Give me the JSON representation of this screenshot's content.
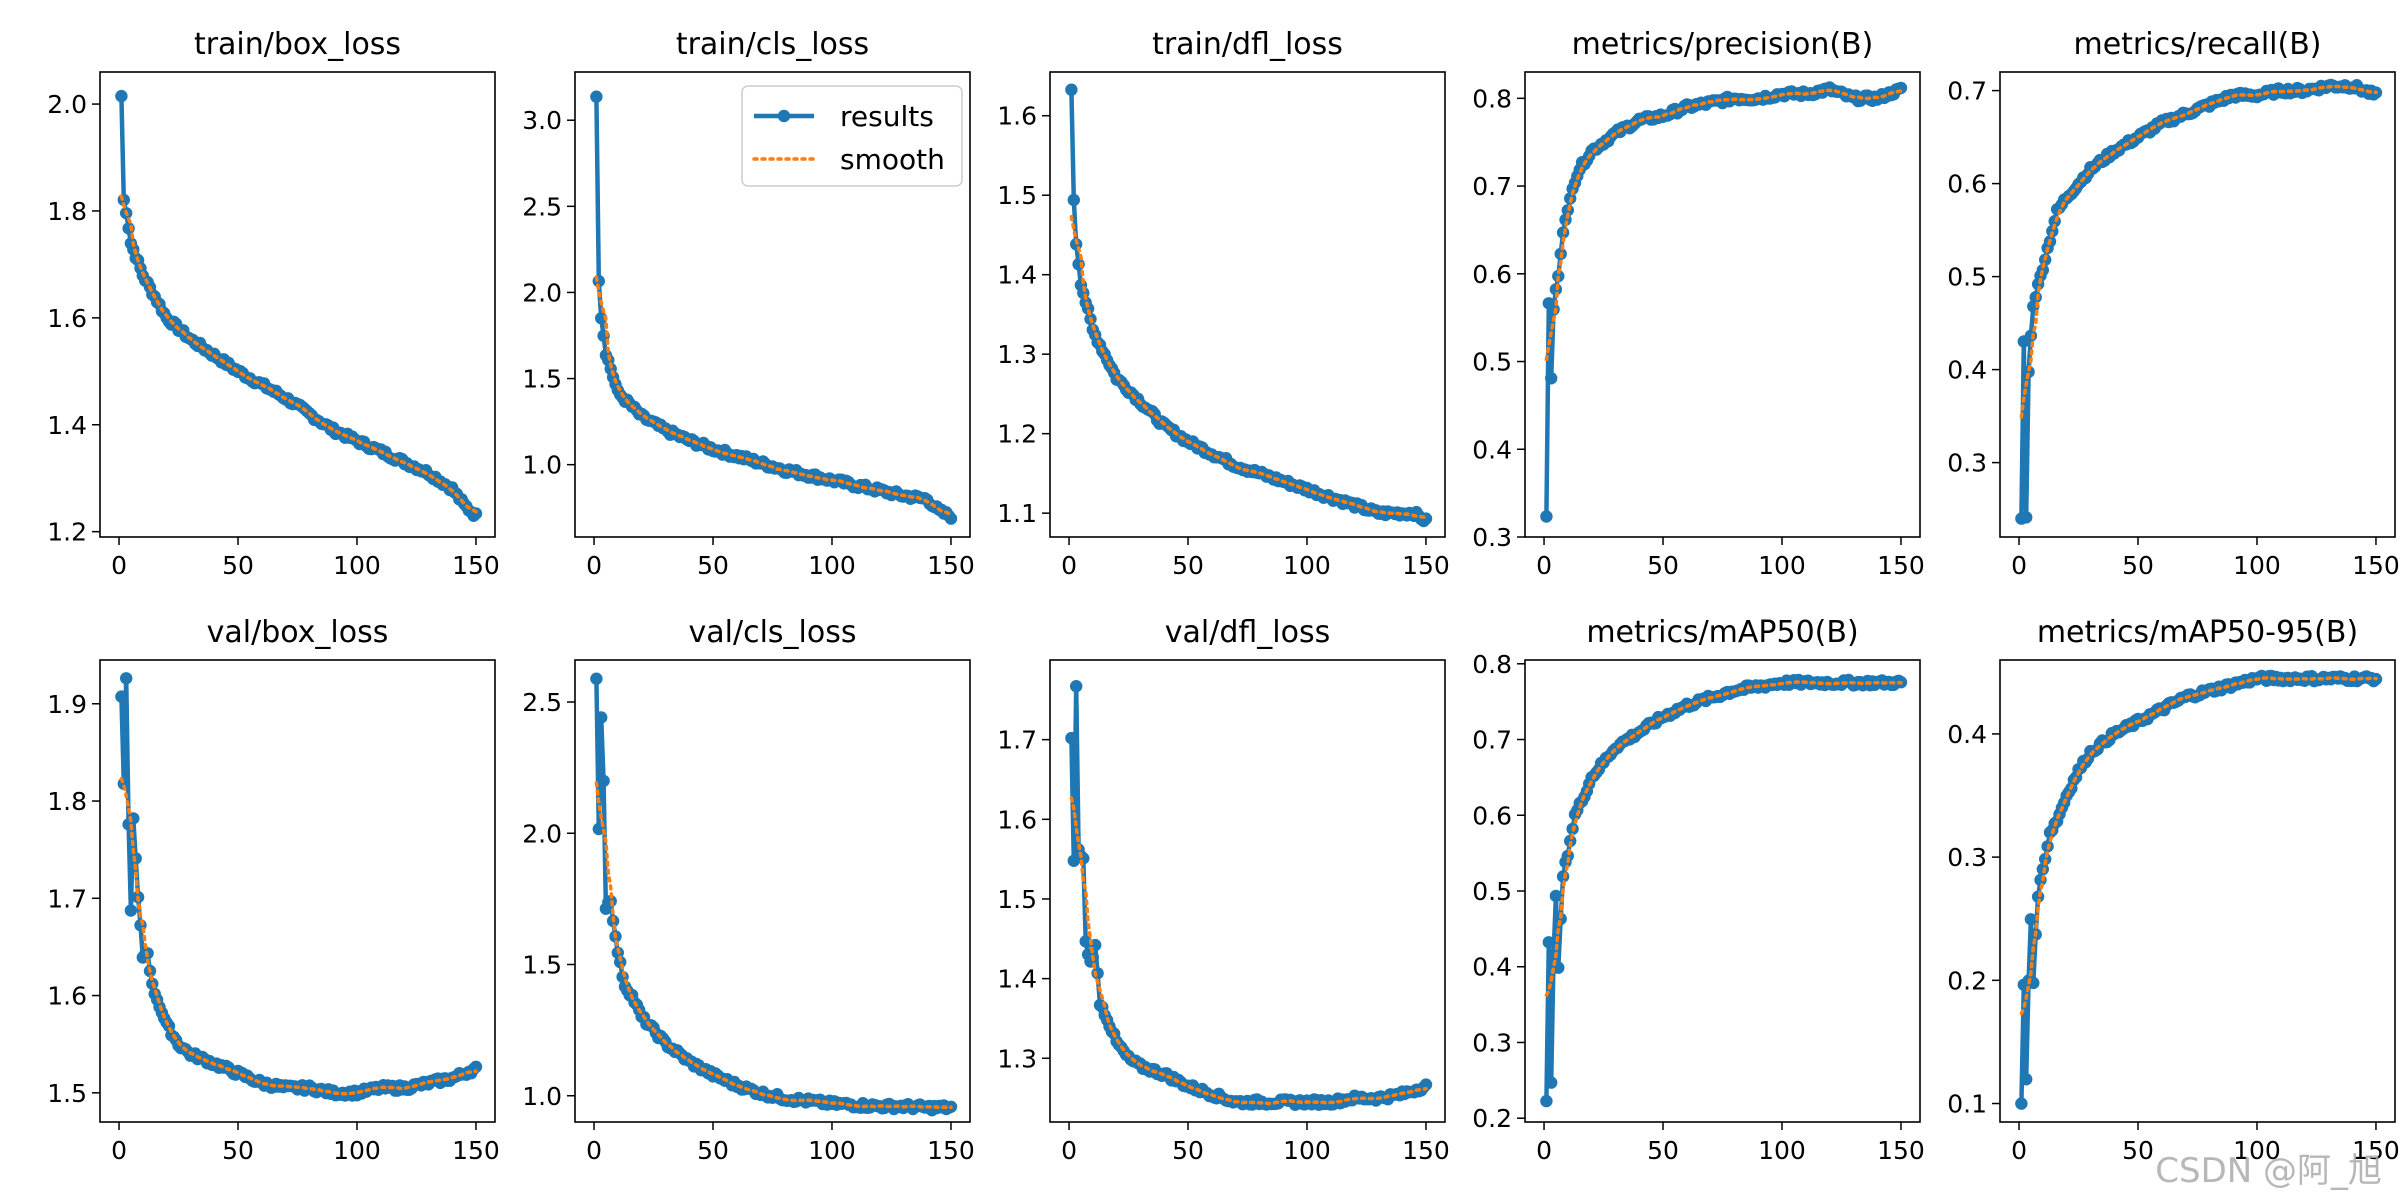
{
  "watermark": "CSDN @阿_旭",
  "legend": {
    "results": "results",
    "smooth": "smooth"
  },
  "colors": {
    "results": "#1f77b4",
    "smooth": "#ff7f0e",
    "axes": "#000000"
  },
  "chart_data": [
    {
      "type": "line",
      "title": "train/box_loss",
      "ylim": [
        1.19,
        2.06
      ],
      "yticks": [
        1.2,
        1.4,
        1.6,
        1.8,
        2.0
      ],
      "ytick_labels": [
        "1.2",
        "1.4",
        "1.6",
        "1.8",
        "2.0"
      ],
      "xticks": [
        0,
        50,
        100,
        150
      ],
      "xtick_labels": [
        "0",
        "50",
        "100",
        "150"
      ],
      "anchors": [
        [
          1,
          2.015
        ],
        [
          2,
          1.82
        ],
        [
          3,
          1.8
        ],
        [
          5,
          1.74
        ],
        [
          10,
          1.68
        ],
        [
          20,
          1.6
        ],
        [
          30,
          1.56
        ],
        [
          40,
          1.53
        ],
        [
          50,
          1.5
        ],
        [
          60,
          1.475
        ],
        [
          70,
          1.45
        ],
        [
          80,
          1.42
        ],
        [
          90,
          1.39
        ],
        [
          100,
          1.37
        ],
        [
          110,
          1.35
        ],
        [
          120,
          1.33
        ],
        [
          130,
          1.31
        ],
        [
          140,
          1.28
        ],
        [
          145,
          1.25
        ],
        [
          150,
          1.23
        ]
      ],
      "legend": false
    },
    {
      "type": "line",
      "title": "train/cls_loss",
      "ylim": [
        0.58,
        3.28
      ],
      "yticks": [
        1.0,
        1.5,
        2.0,
        2.5,
        3.0
      ],
      "ytick_labels": [
        "1.0",
        "1.5",
        "2.0",
        "2.5",
        "3.0"
      ],
      "xticks": [
        0,
        50,
        100,
        150
      ],
      "xtick_labels": [
        "0",
        "50",
        "100",
        "150"
      ],
      "anchors": [
        [
          1,
          3.15
        ],
        [
          2,
          2.08
        ],
        [
          3,
          1.86
        ],
        [
          5,
          1.65
        ],
        [
          10,
          1.42
        ],
        [
          20,
          1.28
        ],
        [
          30,
          1.2
        ],
        [
          40,
          1.14
        ],
        [
          50,
          1.09
        ],
        [
          60,
          1.05
        ],
        [
          70,
          1.01
        ],
        [
          80,
          0.97
        ],
        [
          90,
          0.94
        ],
        [
          100,
          0.91
        ],
        [
          110,
          0.88
        ],
        [
          120,
          0.85
        ],
        [
          130,
          0.82
        ],
        [
          140,
          0.8
        ],
        [
          145,
          0.73
        ],
        [
          150,
          0.7
        ]
      ],
      "legend": true
    },
    {
      "type": "line",
      "title": "train/dfl_loss",
      "ylim": [
        1.07,
        1.655
      ],
      "yticks": [
        1.1,
        1.2,
        1.3,
        1.4,
        1.5,
        1.6
      ],
      "ytick_labels": [
        "1.1",
        "1.2",
        "1.3",
        "1.4",
        "1.5",
        "1.6"
      ],
      "xticks": [
        0,
        50,
        100,
        150
      ],
      "xtick_labels": [
        "0",
        "50",
        "100",
        "150"
      ],
      "anchors": [
        [
          1,
          1.63
        ],
        [
          2,
          1.495
        ],
        [
          3,
          1.44
        ],
        [
          5,
          1.39
        ],
        [
          10,
          1.33
        ],
        [
          20,
          1.27
        ],
        [
          30,
          1.24
        ],
        [
          40,
          1.21
        ],
        [
          50,
          1.19
        ],
        [
          60,
          1.175
        ],
        [
          70,
          1.16
        ],
        [
          80,
          1.15
        ],
        [
          90,
          1.14
        ],
        [
          100,
          1.13
        ],
        [
          110,
          1.12
        ],
        [
          120,
          1.11
        ],
        [
          130,
          1.1
        ],
        [
          140,
          1.1
        ],
        [
          145,
          1.1
        ],
        [
          150,
          1.09
        ]
      ],
      "legend": false
    },
    {
      "type": "line",
      "title": "metrics/precision(B)",
      "ylim": [
        0.3,
        0.83
      ],
      "yticks": [
        0.3,
        0.4,
        0.5,
        0.6,
        0.7,
        0.8
      ],
      "ytick_labels": [
        "0.3",
        "0.4",
        "0.5",
        "0.6",
        "0.7",
        "0.8"
      ],
      "xticks": [
        0,
        50,
        100,
        150
      ],
      "xtick_labels": [
        "0",
        "50",
        "100",
        "150"
      ],
      "anchors": [
        [
          1,
          0.325
        ],
        [
          2,
          0.565
        ],
        [
          3,
          0.48
        ],
        [
          4,
          0.56
        ],
        [
          6,
          0.6
        ],
        [
          8,
          0.65
        ],
        [
          10,
          0.67
        ],
        [
          12,
          0.7
        ],
        [
          15,
          0.72
        ],
        [
          20,
          0.74
        ],
        [
          30,
          0.76
        ],
        [
          40,
          0.775
        ],
        [
          50,
          0.78
        ],
        [
          60,
          0.79
        ],
        [
          70,
          0.795
        ],
        [
          80,
          0.8
        ],
        [
          90,
          0.8
        ],
        [
          100,
          0.805
        ],
        [
          110,
          0.805
        ],
        [
          120,
          0.81
        ],
        [
          130,
          0.8
        ],
        [
          140,
          0.8
        ],
        [
          150,
          0.81
        ]
      ],
      "legend": false
    },
    {
      "type": "line",
      "title": "metrics/recall(B)",
      "ylim": [
        0.22,
        0.72
      ],
      "yticks": [
        0.3,
        0.4,
        0.5,
        0.6,
        0.7
      ],
      "ytick_labels": [
        "0.3",
        "0.4",
        "0.5",
        "0.6",
        "0.7"
      ],
      "xticks": [
        0,
        50,
        100,
        150
      ],
      "xtick_labels": [
        "0",
        "50",
        "100",
        "150"
      ],
      "anchors": [
        [
          1,
          0.24
        ],
        [
          2,
          0.43
        ],
        [
          3,
          0.24
        ],
        [
          4,
          0.4
        ],
        [
          6,
          0.47
        ],
        [
          8,
          0.49
        ],
        [
          10,
          0.51
        ],
        [
          13,
          0.54
        ],
        [
          16,
          0.57
        ],
        [
          20,
          0.585
        ],
        [
          25,
          0.6
        ],
        [
          30,
          0.615
        ],
        [
          40,
          0.635
        ],
        [
          50,
          0.65
        ],
        [
          60,
          0.665
        ],
        [
          70,
          0.675
        ],
        [
          80,
          0.685
        ],
        [
          90,
          0.695
        ],
        [
          100,
          0.695
        ],
        [
          110,
          0.7
        ],
        [
          120,
          0.7
        ],
        [
          130,
          0.705
        ],
        [
          140,
          0.705
        ],
        [
          150,
          0.695
        ]
      ],
      "legend": false
    },
    {
      "type": "line",
      "title": "val/box_loss",
      "ylim": [
        1.47,
        1.945
      ],
      "yticks": [
        1.5,
        1.6,
        1.7,
        1.8,
        1.9
      ],
      "ytick_labels": [
        "1.5",
        "1.6",
        "1.7",
        "1.8",
        "1.9"
      ],
      "xticks": [
        0,
        50,
        100,
        150
      ],
      "xtick_labels": [
        "0",
        "50",
        "100",
        "150"
      ],
      "anchors": [
        [
          1,
          1.905
        ],
        [
          2,
          1.82
        ],
        [
          3,
          1.925
        ],
        [
          4,
          1.775
        ],
        [
          5,
          1.69
        ],
        [
          6,
          1.78
        ],
        [
          8,
          1.7
        ],
        [
          10,
          1.64
        ],
        [
          12,
          1.645
        ],
        [
          14,
          1.61
        ],
        [
          17,
          1.59
        ],
        [
          20,
          1.57
        ],
        [
          25,
          1.55
        ],
        [
          30,
          1.54
        ],
        [
          40,
          1.53
        ],
        [
          50,
          1.52
        ],
        [
          60,
          1.51
        ],
        [
          70,
          1.505
        ],
        [
          80,
          1.505
        ],
        [
          90,
          1.5
        ],
        [
          100,
          1.5
        ],
        [
          110,
          1.505
        ],
        [
          120,
          1.505
        ],
        [
          130,
          1.51
        ],
        [
          140,
          1.515
        ],
        [
          150,
          1.525
        ]
      ],
      "legend": false
    },
    {
      "type": "line",
      "title": "val/cls_loss",
      "ylim": [
        0.9,
        2.66
      ],
      "yticks": [
        1.0,
        1.5,
        2.0,
        2.5
      ],
      "ytick_labels": [
        "1.0",
        "1.5",
        "2.0",
        "2.5"
      ],
      "xticks": [
        0,
        50,
        100,
        150
      ],
      "xtick_labels": [
        "0",
        "50",
        "100",
        "150"
      ],
      "anchors": [
        [
          1,
          2.58
        ],
        [
          2,
          2.01
        ],
        [
          3,
          2.45
        ],
        [
          4,
          2.2
        ],
        [
          5,
          1.72
        ],
        [
          7,
          1.75
        ],
        [
          9,
          1.6
        ],
        [
          11,
          1.5
        ],
        [
          13,
          1.42
        ],
        [
          16,
          1.38
        ],
        [
          20,
          1.3
        ],
        [
          30,
          1.2
        ],
        [
          40,
          1.13
        ],
        [
          50,
          1.08
        ],
        [
          60,
          1.04
        ],
        [
          70,
          1.01
        ],
        [
          80,
          0.99
        ],
        [
          90,
          0.98
        ],
        [
          100,
          0.97
        ],
        [
          110,
          0.965
        ],
        [
          120,
          0.96
        ],
        [
          130,
          0.96
        ],
        [
          140,
          0.955
        ],
        [
          150,
          0.955
        ]
      ],
      "legend": false
    },
    {
      "type": "line",
      "title": "val/dfl_loss",
      "ylim": [
        1.22,
        1.8
      ],
      "yticks": [
        1.3,
        1.4,
        1.5,
        1.6,
        1.7
      ],
      "ytick_labels": [
        "1.3",
        "1.4",
        "1.5",
        "1.6",
        "1.7"
      ],
      "xticks": [
        0,
        50,
        100,
        150
      ],
      "xtick_labels": [
        "0",
        "50",
        "100",
        "150"
      ],
      "anchors": [
        [
          1,
          1.7
        ],
        [
          2,
          1.545
        ],
        [
          3,
          1.77
        ],
        [
          4,
          1.56
        ],
        [
          6,
          1.55
        ],
        [
          7,
          1.445
        ],
        [
          9,
          1.42
        ],
        [
          11,
          1.44
        ],
        [
          13,
          1.37
        ],
        [
          16,
          1.35
        ],
        [
          20,
          1.32
        ],
        [
          25,
          1.3
        ],
        [
          30,
          1.29
        ],
        [
          40,
          1.28
        ],
        [
          50,
          1.265
        ],
        [
          60,
          1.255
        ],
        [
          70,
          1.245
        ],
        [
          80,
          1.245
        ],
        [
          90,
          1.245
        ],
        [
          100,
          1.245
        ],
        [
          110,
          1.245
        ],
        [
          120,
          1.25
        ],
        [
          130,
          1.25
        ],
        [
          140,
          1.255
        ],
        [
          150,
          1.265
        ]
      ],
      "legend": false
    },
    {
      "type": "line",
      "title": "metrics/mAP50(B)",
      "ylim": [
        0.195,
        0.805
      ],
      "yticks": [
        0.2,
        0.3,
        0.4,
        0.5,
        0.6,
        0.7,
        0.8
      ],
      "ytick_labels": [
        "0.2",
        "0.3",
        "0.4",
        "0.5",
        "0.6",
        "0.7",
        "0.8"
      ],
      "xticks": [
        0,
        50,
        100,
        150
      ],
      "xtick_labels": [
        "0",
        "50",
        "100",
        "150"
      ],
      "anchors": [
        [
          1,
          0.22
        ],
        [
          2,
          0.43
        ],
        [
          3,
          0.25
        ],
        [
          4,
          0.42
        ],
        [
          5,
          0.49
        ],
        [
          6,
          0.4
        ],
        [
          8,
          0.52
        ],
        [
          10,
          0.55
        ],
        [
          13,
          0.6
        ],
        [
          16,
          0.62
        ],
        [
          20,
          0.65
        ],
        [
          25,
          0.67
        ],
        [
          30,
          0.69
        ],
        [
          40,
          0.71
        ],
        [
          50,
          0.73
        ],
        [
          60,
          0.745
        ],
        [
          70,
          0.755
        ],
        [
          80,
          0.765
        ],
        [
          90,
          0.77
        ],
        [
          100,
          0.775
        ],
        [
          110,
          0.775
        ],
        [
          120,
          0.775
        ],
        [
          130,
          0.775
        ],
        [
          140,
          0.775
        ],
        [
          150,
          0.775
        ]
      ],
      "legend": false
    },
    {
      "type": "line",
      "title": "metrics/mAP50-95(B)",
      "ylim": [
        0.085,
        0.46
      ],
      "yticks": [
        0.1,
        0.2,
        0.3,
        0.4
      ],
      "ytick_labels": [
        "0.1",
        "0.2",
        "0.3",
        "0.4"
      ],
      "xticks": [
        0,
        50,
        100,
        150
      ],
      "xtick_labels": [
        "0",
        "50",
        "100",
        "150"
      ],
      "anchors": [
        [
          1,
          0.1
        ],
        [
          2,
          0.195
        ],
        [
          3,
          0.12
        ],
        [
          4,
          0.2
        ],
        [
          5,
          0.25
        ],
        [
          6,
          0.2
        ],
        [
          8,
          0.27
        ],
        [
          10,
          0.29
        ],
        [
          13,
          0.32
        ],
        [
          16,
          0.33
        ],
        [
          20,
          0.35
        ],
        [
          25,
          0.37
        ],
        [
          30,
          0.385
        ],
        [
          40,
          0.4
        ],
        [
          50,
          0.41
        ],
        [
          60,
          0.42
        ],
        [
          70,
          0.43
        ],
        [
          80,
          0.435
        ],
        [
          90,
          0.44
        ],
        [
          100,
          0.445
        ],
        [
          110,
          0.445
        ],
        [
          120,
          0.445
        ],
        [
          130,
          0.445
        ],
        [
          140,
          0.445
        ],
        [
          150,
          0.445
        ]
      ],
      "legend": false
    }
  ]
}
